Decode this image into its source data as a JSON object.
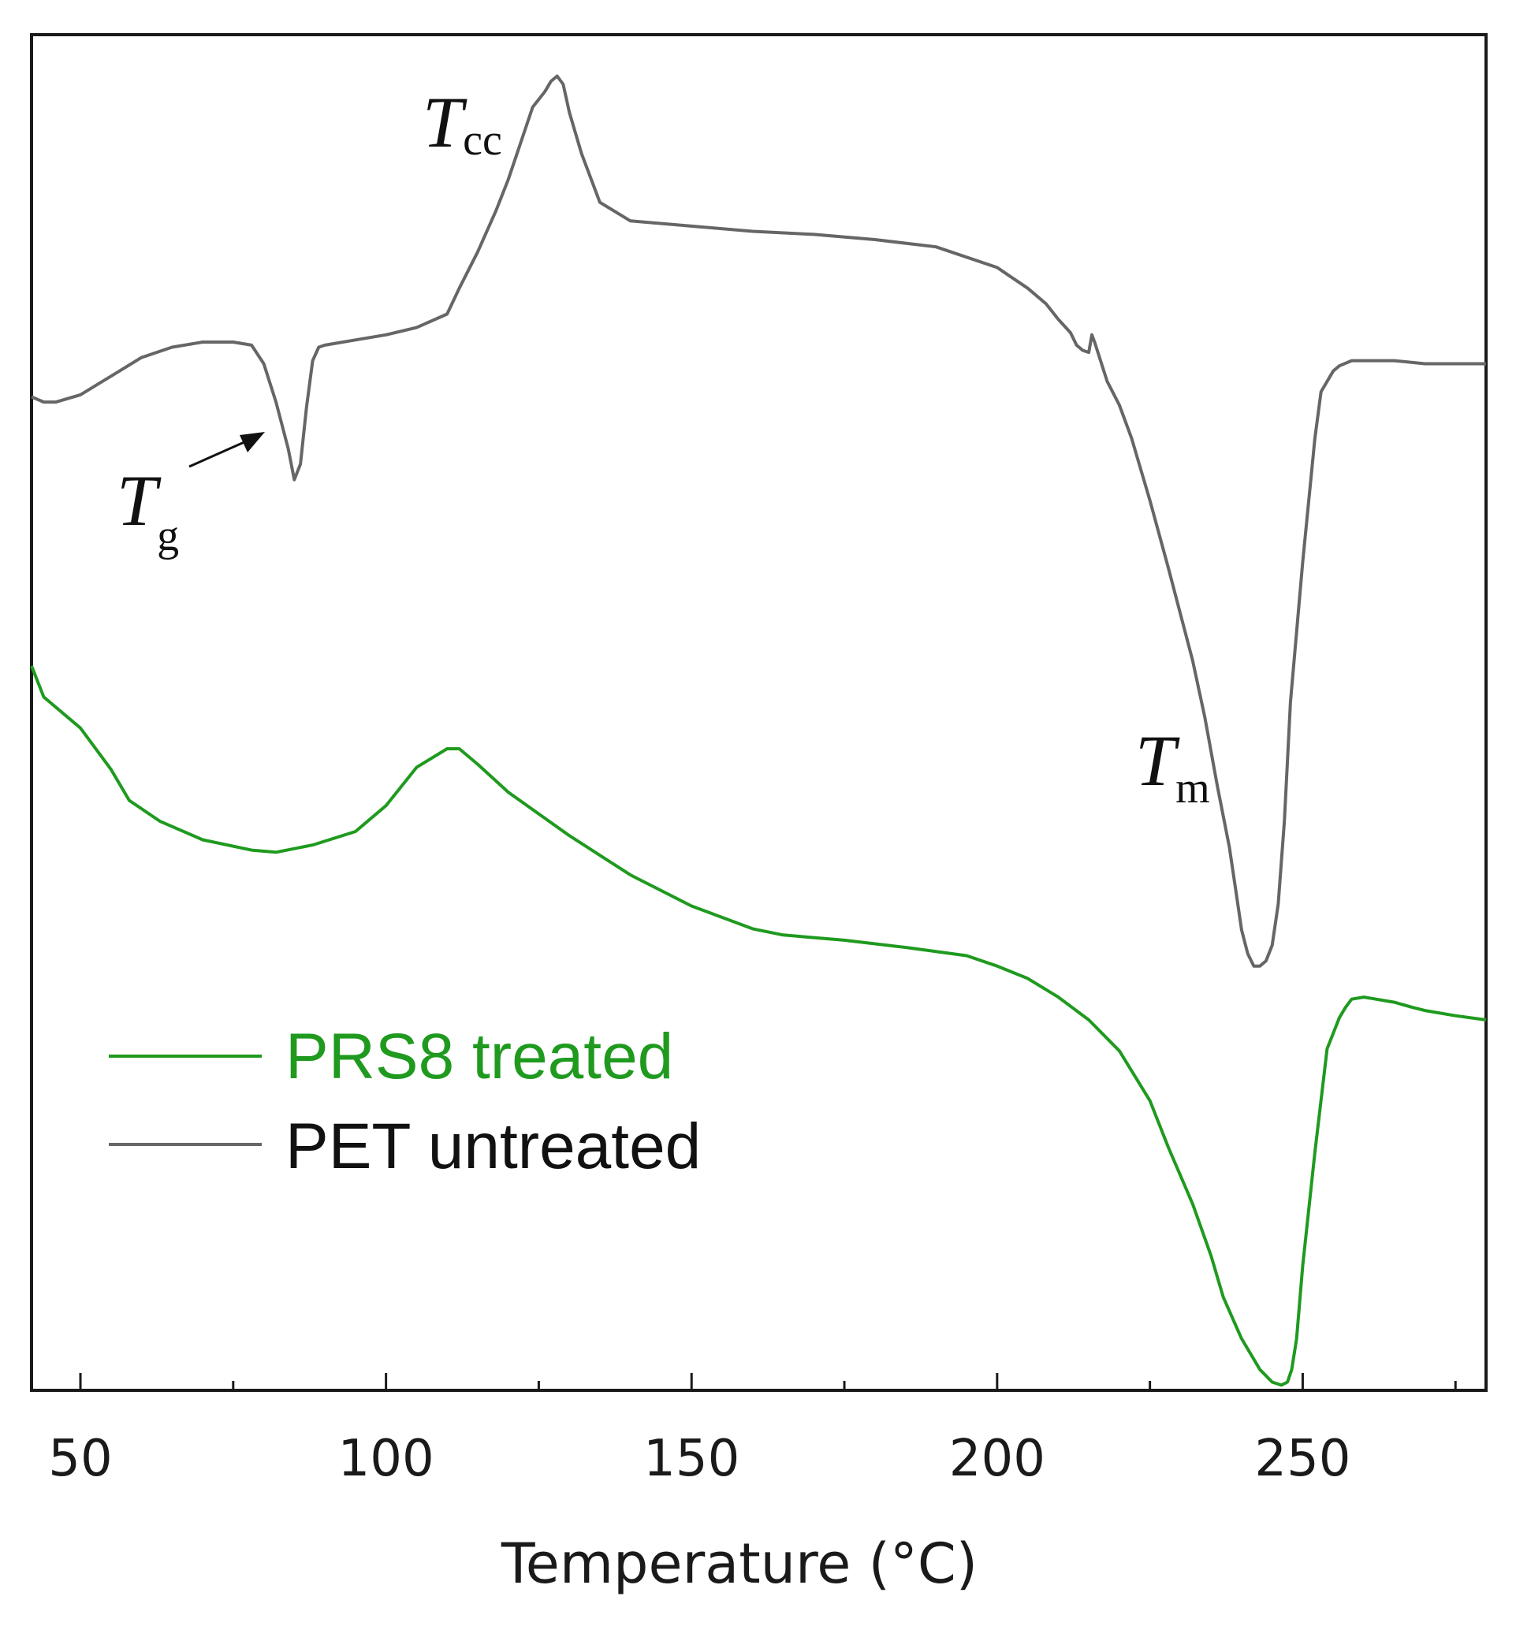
{
  "chart_data": {
    "type": "line",
    "title": "",
    "xlabel": "Temperature (°C)",
    "ylabel": "",
    "xlim": [
      42,
      280
    ],
    "ylim": [
      -6.2,
      6.9
    ],
    "xticks_major": [
      50,
      100,
      150,
      200,
      250
    ],
    "xticks_minor": [
      75,
      125,
      175,
      225,
      275
    ],
    "yticks": [],
    "grid": false,
    "legend_position": "bottom-left",
    "series": [
      {
        "name": "PRS8 treated",
        "color": "#1f9a1f",
        "x": [
          42,
          44,
          50,
          55,
          58,
          63,
          70,
          78,
          82,
          88,
          95,
          100,
          105,
          110,
          112,
          115,
          120,
          130,
          140,
          150,
          160,
          165,
          175,
          185,
          195,
          200,
          205,
          210,
          215,
          220,
          225,
          228,
          232,
          235,
          237,
          240,
          243,
          245,
          246.5,
          247.5,
          248.2,
          249,
          250,
          252,
          254,
          256,
          257,
          258,
          260,
          262,
          265,
          268,
          270,
          275,
          280
        ],
        "y": [
          0.8,
          0.5,
          0.2,
          -0.2,
          -0.5,
          -0.7,
          -0.88,
          -0.98,
          -1.0,
          -0.93,
          -0.8,
          -0.55,
          -0.18,
          0.0,
          0.0,
          -0.15,
          -0.42,
          -0.84,
          -1.22,
          -1.52,
          -1.74,
          -1.8,
          -1.85,
          -1.92,
          -2.0,
          -2.1,
          -2.22,
          -2.4,
          -2.62,
          -2.92,
          -3.4,
          -3.85,
          -4.4,
          -4.9,
          -5.3,
          -5.7,
          -6.0,
          -6.12,
          -6.15,
          -6.12,
          -6.0,
          -5.7,
          -5.0,
          -3.9,
          -2.9,
          -2.6,
          -2.5,
          -2.42,
          -2.4,
          -2.42,
          -2.45,
          -2.5,
          -2.53,
          -2.58,
          -2.62
        ]
      },
      {
        "name": "PET untreated",
        "color": "#666666",
        "x": [
          42,
          44,
          46,
          50,
          55,
          60,
          65,
          70,
          75,
          78,
          80,
          82,
          84,
          85,
          86,
          87,
          88,
          89,
          90,
          95,
          100,
          105,
          110,
          112,
          115,
          118,
          120,
          122,
          124,
          126,
          127,
          128,
          129,
          130,
          132,
          135,
          140,
          150,
          160,
          170,
          180,
          190,
          200,
          205,
          208,
          210,
          212,
          213,
          214,
          215,
          215.5,
          216,
          218,
          220,
          222,
          225,
          228,
          230,
          232,
          234,
          236,
          238,
          239,
          240,
          241,
          242,
          243,
          244,
          245,
          246,
          247,
          248,
          250,
          252,
          253,
          255,
          256,
          258,
          260,
          265,
          270,
          275,
          280
        ],
        "y": [
          3.4,
          3.35,
          3.35,
          3.42,
          3.6,
          3.78,
          3.88,
          3.93,
          3.93,
          3.9,
          3.72,
          3.35,
          2.9,
          2.6,
          2.75,
          3.3,
          3.75,
          3.88,
          3.9,
          3.95,
          4.0,
          4.07,
          4.2,
          4.45,
          4.8,
          5.2,
          5.5,
          5.85,
          6.2,
          6.35,
          6.45,
          6.5,
          6.42,
          6.15,
          5.75,
          5.28,
          5.1,
          5.05,
          5.0,
          4.97,
          4.92,
          4.85,
          4.65,
          4.45,
          4.3,
          4.15,
          4.02,
          3.9,
          3.85,
          3.83,
          4.0,
          3.92,
          3.55,
          3.32,
          3.0,
          2.4,
          1.75,
          1.3,
          0.85,
          0.3,
          -0.35,
          -0.95,
          -1.35,
          -1.75,
          -1.98,
          -2.1,
          -2.1,
          -2.05,
          -1.9,
          -1.5,
          -0.7,
          0.45,
          1.8,
          3.0,
          3.45,
          3.65,
          3.7,
          3.75,
          3.75,
          3.75,
          3.72,
          3.72,
          3.72
        ]
      }
    ],
    "legend": [
      {
        "label": "PRS8 treated",
        "color": "#1f9a1f"
      },
      {
        "label": "PET untreated",
        "color": "#111111"
      }
    ],
    "annotations": [
      {
        "main": "T",
        "sub": "cc",
        "near_x": 125
      },
      {
        "main": "T",
        "sub": "g",
        "near_x": 55
      },
      {
        "main": "T",
        "sub": "m",
        "near_x": 240
      }
    ]
  }
}
